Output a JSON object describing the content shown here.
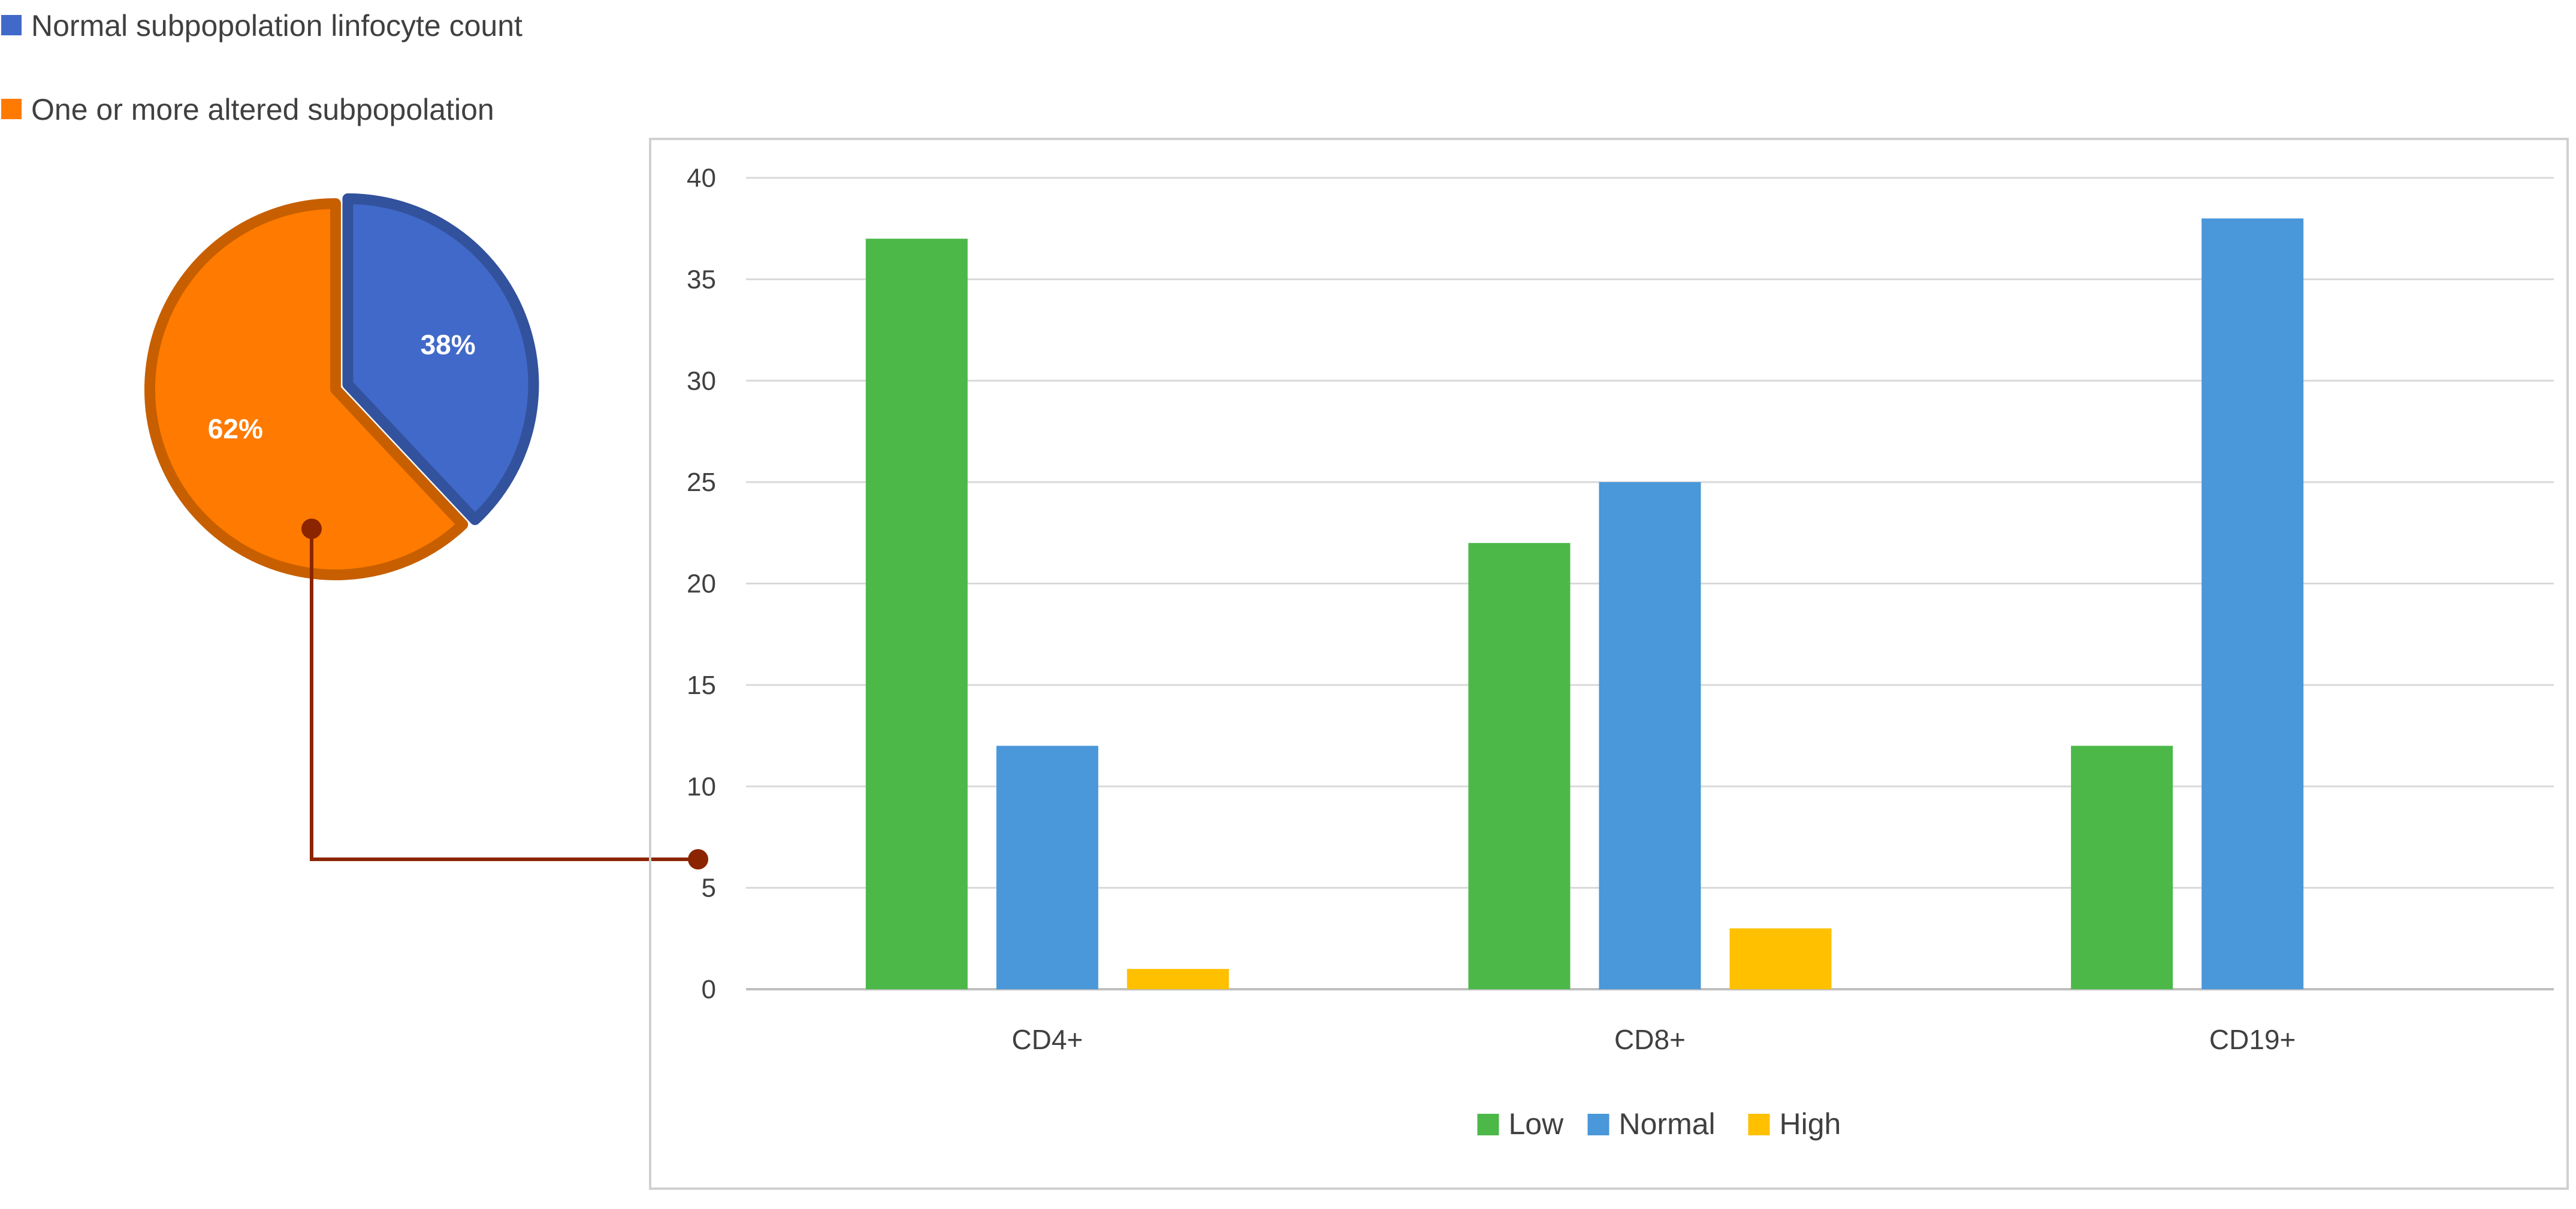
{
  "chart_data": [
    {
      "type": "pie",
      "legend_position": "top-left",
      "slices": [
        {
          "label": "Normal subpopolation linfocyte count",
          "value": 38,
          "display": "38%",
          "color": "#4169C9",
          "exploded": true
        },
        {
          "label": "One or more altered subpopolation",
          "value": 62,
          "display": "62%",
          "color": "#FF7A00",
          "exploded": false
        }
      ]
    },
    {
      "type": "bar",
      "categories": [
        "CD4+",
        "CD8+",
        "CD19+"
      ],
      "series": [
        {
          "name": "Low",
          "color": "#4CB848",
          "values": [
            37,
            22,
            12
          ]
        },
        {
          "name": "Normal",
          "color": "#4A97D9",
          "values": [
            12,
            25,
            38
          ]
        },
        {
          "name": "High",
          "color": "#FFC000",
          "values": [
            1,
            3,
            0
          ]
        }
      ],
      "ylim": [
        0,
        40
      ],
      "yticks": [
        0,
        5,
        10,
        15,
        20,
        25,
        30,
        35,
        40
      ],
      "grid": true,
      "legend_position": "bottom"
    }
  ]
}
